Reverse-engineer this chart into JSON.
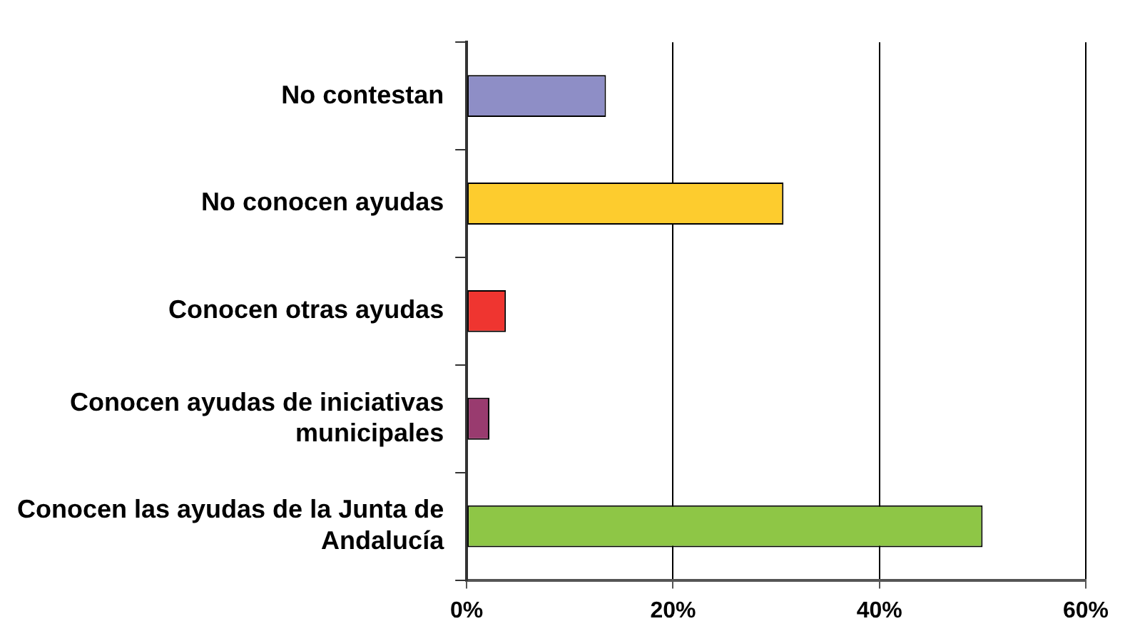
{
  "chart_data": {
    "type": "bar",
    "orientation": "horizontal",
    "categories": [
      "No contestan",
      "No conocen ayudas",
      "Conocen otras ayudas",
      "Conocen ayudas de iniciativas municipales",
      "Conocen las ayudas de la Junta de Andalucía"
    ],
    "values": [
      13.5,
      30.7,
      3.8,
      2.2,
      50
    ],
    "colors": [
      "#8e8ec6",
      "#fdcc2e",
      "#ef3530",
      "#993b6f",
      "#8ec646"
    ],
    "xlim": [
      0,
      60
    ],
    "xticks": [
      {
        "value": 0,
        "label": "0%"
      },
      {
        "value": 20,
        "label": "20%"
      },
      {
        "value": 40,
        "label": "40%"
      },
      {
        "value": 60,
        "label": "60%"
      }
    ],
    "grid": "x"
  }
}
